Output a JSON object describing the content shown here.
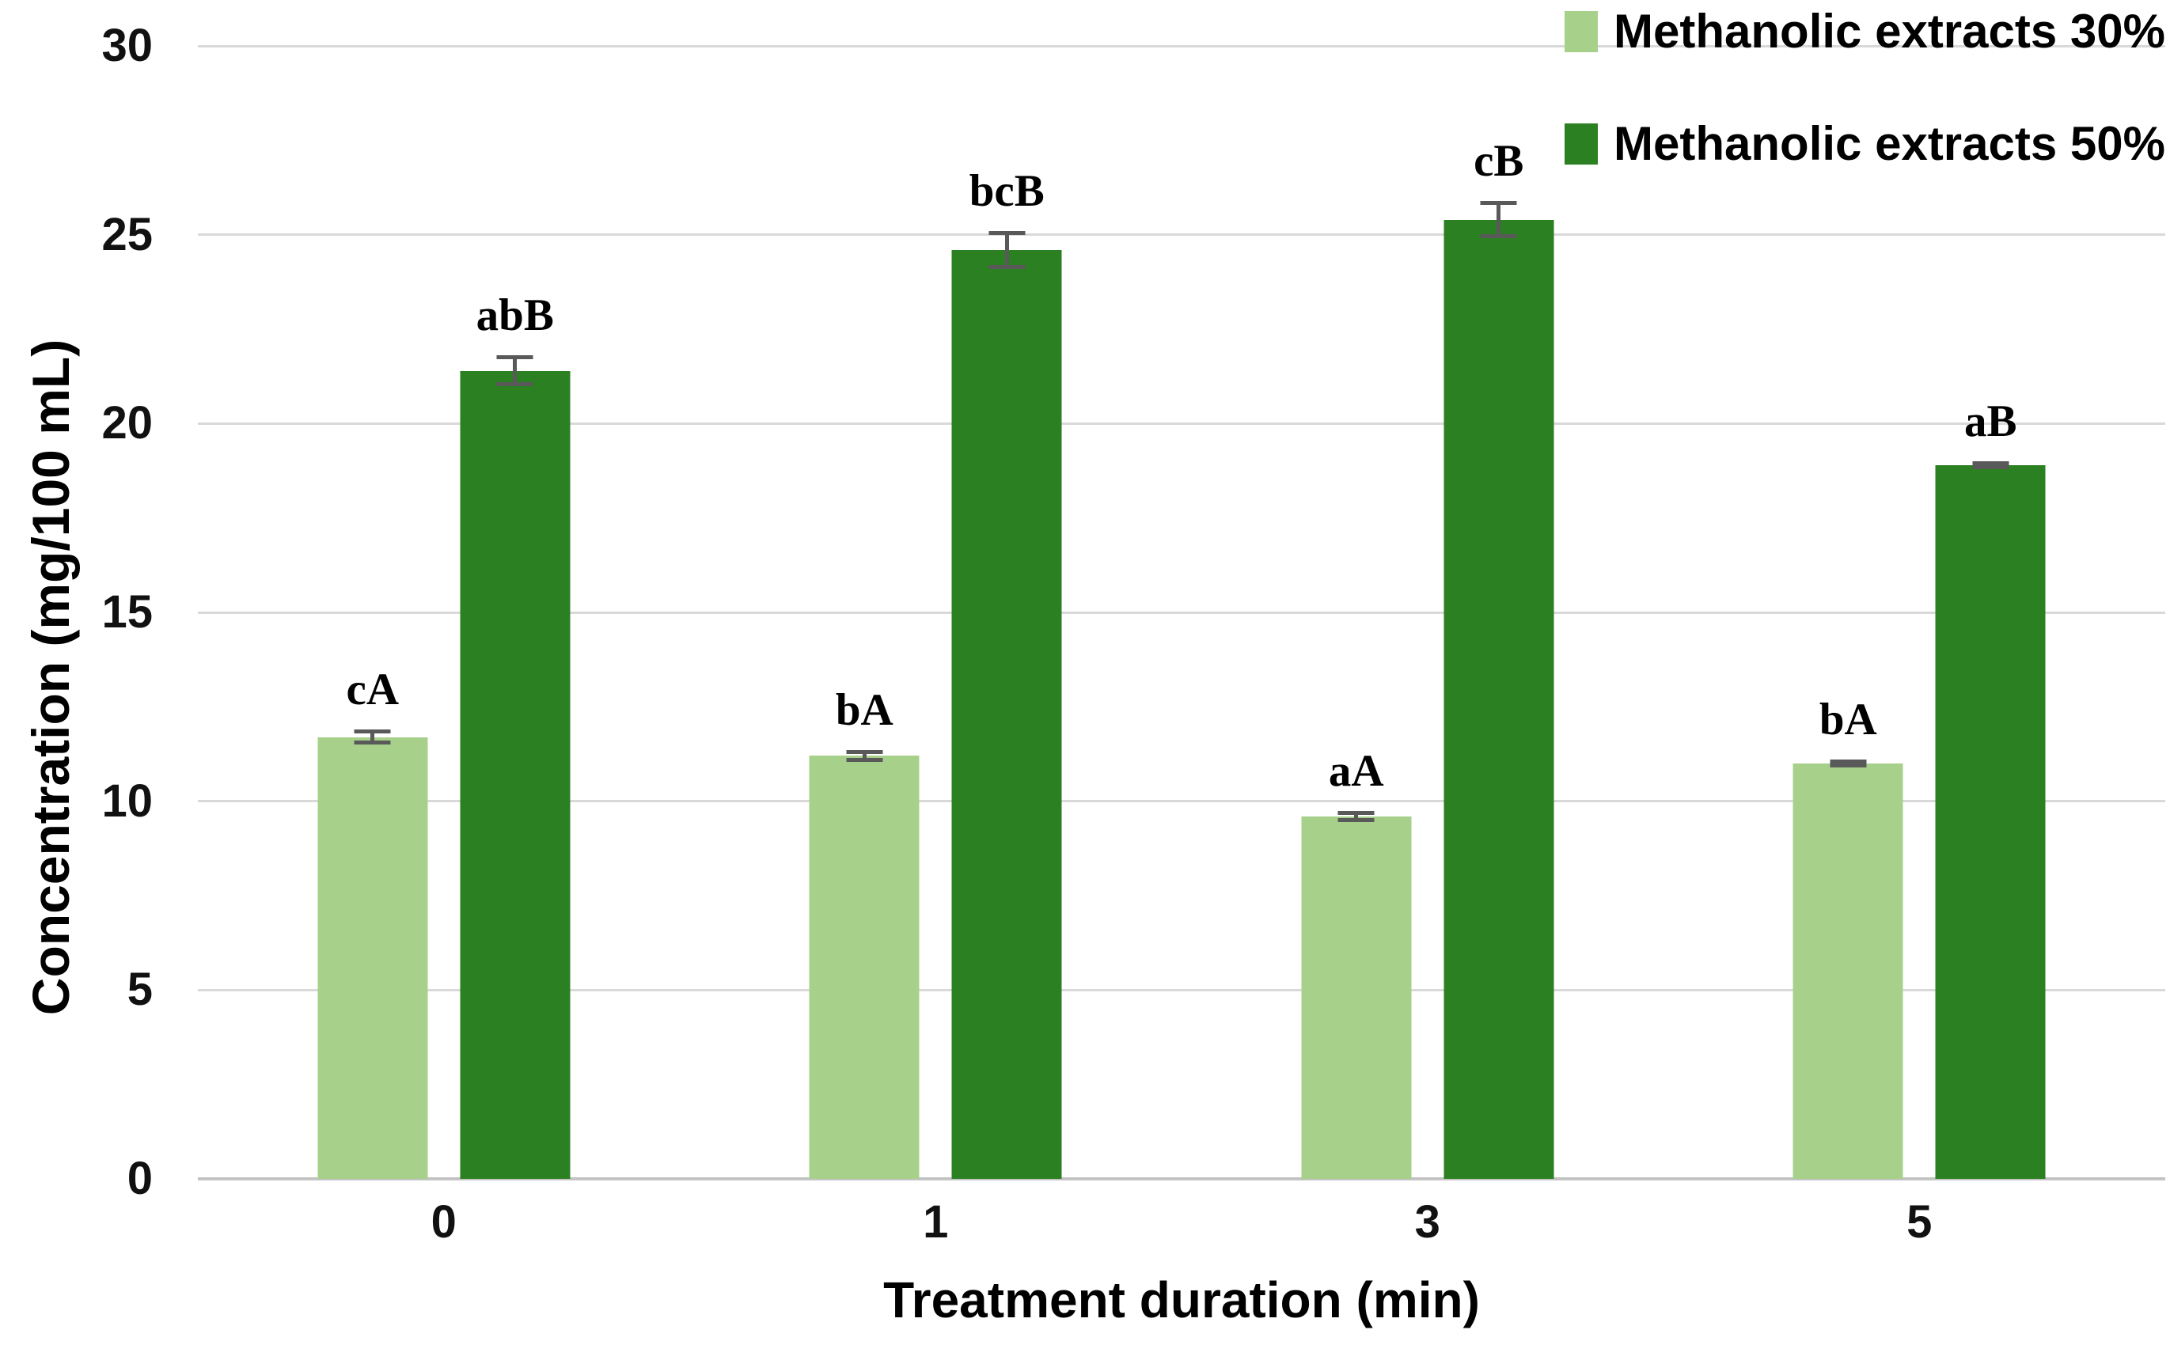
{
  "chart_data": {
    "type": "bar",
    "title": "",
    "xlabel": "Treatment duration (min)",
    "ylabel": "Concentration (mg/100 mL)",
    "categories": [
      "0",
      "1",
      "3",
      "5"
    ],
    "yticks": [
      0,
      5,
      10,
      15,
      20,
      25,
      30
    ],
    "ylim": [
      0,
      30
    ],
    "grid": true,
    "legend_position": "top-right",
    "series": [
      {
        "name": "Methanolic extracts 30%",
        "color": "#a7d18b",
        "values": [
          11.7,
          11.2,
          9.6,
          11.0
        ],
        "errors": [
          0.2,
          0.15,
          0.15,
          0.1
        ],
        "labels": [
          "cA",
          "bA",
          "aA",
          "bA"
        ]
      },
      {
        "name": "Methanolic extracts 50%",
        "color": "#2b8021",
        "values": [
          21.4,
          24.6,
          25.4,
          18.9
        ],
        "errors": [
          0.4,
          0.5,
          0.5,
          0.1
        ],
        "labels": [
          "abB",
          "bcB",
          "cB",
          "aB"
        ]
      }
    ],
    "colors": {
      "gridline": "#d9d9d9",
      "axis_line": "#c3c3c3",
      "error_bar": "#595959"
    }
  }
}
